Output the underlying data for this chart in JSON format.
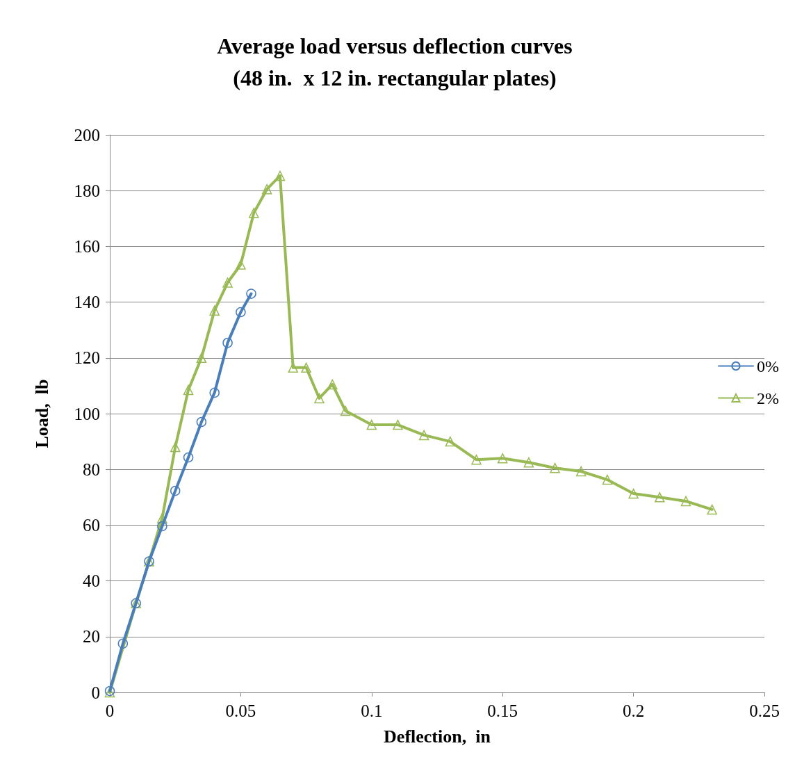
{
  "chart_data": {
    "type": "line",
    "title": "Average load versus deflection curves\n(48 in.  x 12 in. rectangular plates)",
    "xlabel": "Deflection,  in",
    "ylabel": "Load,  lb",
    "xlim": [
      0,
      0.25
    ],
    "xticks": [
      0,
      0.05,
      0.1,
      0.15,
      0.2,
      0.25
    ],
    "ylim": [
      0,
      200
    ],
    "yticks": [
      0,
      20,
      40,
      60,
      80,
      100,
      120,
      140,
      160,
      180,
      200
    ],
    "grid": "y",
    "legend": "right",
    "line_style": "solid",
    "series": [
      {
        "name": "0%",
        "color": "#4a7ebb",
        "marker": "circle",
        "x": [
          0,
          0.005,
          0.01,
          0.015,
          0.02,
          0.025,
          0.03,
          0.035,
          0.04,
          0.045,
          0.05,
          0.054
        ],
        "values": [
          0.5,
          17.5,
          32,
          47,
          59.6,
          72.3,
          84.3,
          97,
          107.5,
          125.4,
          136.4,
          143
        ]
      },
      {
        "name": "2%",
        "color": "#98b954",
        "marker": "triangle",
        "x": [
          0,
          0.01,
          0.015,
          0.02,
          0.025,
          0.03,
          0.035,
          0.04,
          0.045,
          0.05,
          0.055,
          0.06,
          0.065,
          0.07,
          0.075,
          0.08,
          0.085,
          0.09,
          0.1,
          0.11,
          0.12,
          0.13,
          0.14,
          0.15,
          0.16,
          0.17,
          0.18,
          0.19,
          0.2,
          0.21,
          0.22,
          0.23
        ],
        "values": [
          0,
          32,
          47,
          62.5,
          88,
          108.5,
          120,
          137,
          147,
          153.5,
          172,
          180.5,
          185.3,
          116.5,
          116.5,
          105.5,
          110.5,
          101,
          96,
          96,
          92.3,
          90,
          83.5,
          84,
          82.5,
          80.5,
          79.3,
          76.3,
          71.3,
          70,
          68.6,
          65.6
        ]
      }
    ]
  }
}
